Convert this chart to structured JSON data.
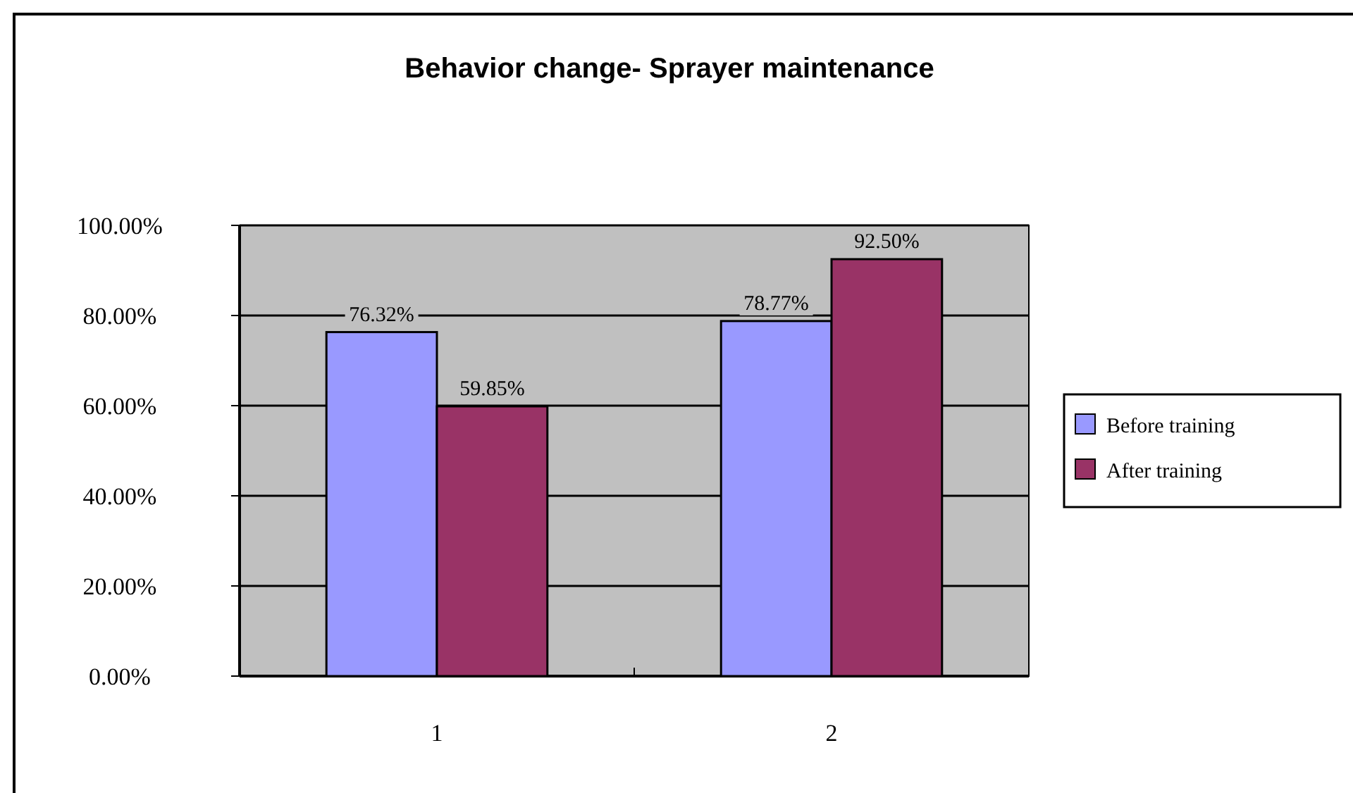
{
  "chart_data": {
    "type": "bar",
    "title": "Behavior change- Sprayer maintenance",
    "categories": [
      "1",
      "2"
    ],
    "series": [
      {
        "name": "Before training",
        "color": "#9999ff",
        "values": [
          76.32,
          78.77
        ],
        "value_labels": [
          "76.32%",
          "78.77%"
        ]
      },
      {
        "name": "After training",
        "color": "#993366",
        "values": [
          59.85,
          92.5
        ],
        "value_labels": [
          "59.85%",
          "92.50%"
        ]
      }
    ],
    "ylim": [
      0,
      100
    ],
    "yticks": [
      {
        "value": 0,
        "label": "0.00%"
      },
      {
        "value": 20,
        "label": "20.00%"
      },
      {
        "value": 40,
        "label": "40.00%"
      },
      {
        "value": 60,
        "label": "60.00%"
      },
      {
        "value": 80,
        "label": "80.00%"
      },
      {
        "value": 100,
        "label": "100.00%"
      }
    ],
    "grid": "y",
    "legend": "right"
  }
}
